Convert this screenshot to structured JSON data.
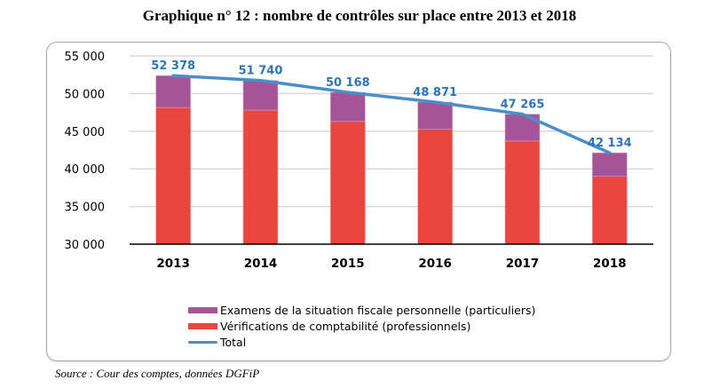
{
  "header": {
    "title": "Graphique n° 12 : nombre de contrôles sur place entre 2013 et 2018"
  },
  "source": "Source : Cour des comptes, données DGFiP",
  "colors": {
    "esfp": "#a55597",
    "vc": "#e8463e",
    "total": "#4a90c8",
    "label": "#2e75b6",
    "grid": "#d9d9d9",
    "axis": "#000000"
  },
  "chart_data": {
    "type": "bar",
    "stacked": true,
    "title": "Graphique n° 12 : nombre de contrôles sur place entre 2013 et 2018",
    "xlabel": "",
    "ylabel": "",
    "categories": [
      "2013",
      "2014",
      "2015",
      "2016",
      "2017",
      "2018"
    ],
    "ylim": [
      30000,
      55000
    ],
    "yticks": [
      30000,
      35000,
      40000,
      45000,
      50000,
      55000
    ],
    "ytick_labels": [
      "30 000",
      "35 000",
      "40 000",
      "45 000",
      "50 000",
      "55 000"
    ],
    "grid": true,
    "legend_position": "bottom",
    "series": [
      {
        "name": "Vérifications de comptabilité (professionnels)",
        "type": "bar",
        "values": [
          48150,
          47800,
          46300,
          45250,
          43700,
          39000
        ]
      },
      {
        "name": "Examens de la situation fiscale personnelle (particuliers)",
        "type": "bar",
        "values": [
          4228,
          3940,
          3868,
          3621,
          3565,
          3134
        ]
      },
      {
        "name": "Total",
        "type": "line",
        "values": [
          52378,
          51740,
          50168,
          48871,
          47265,
          42134
        ]
      }
    ],
    "data_labels": [
      "52 378",
      "51 740",
      "50 168",
      "48 871",
      "47 265",
      "42 134"
    ]
  },
  "legend": {
    "items": [
      {
        "label": "Examens de la situation fiscale personnelle (particuliers)",
        "key": "esfp"
      },
      {
        "label": "Vérifications de comptabilité (professionnels)",
        "key": "vc"
      },
      {
        "label": "Total",
        "key": "total"
      }
    ]
  }
}
